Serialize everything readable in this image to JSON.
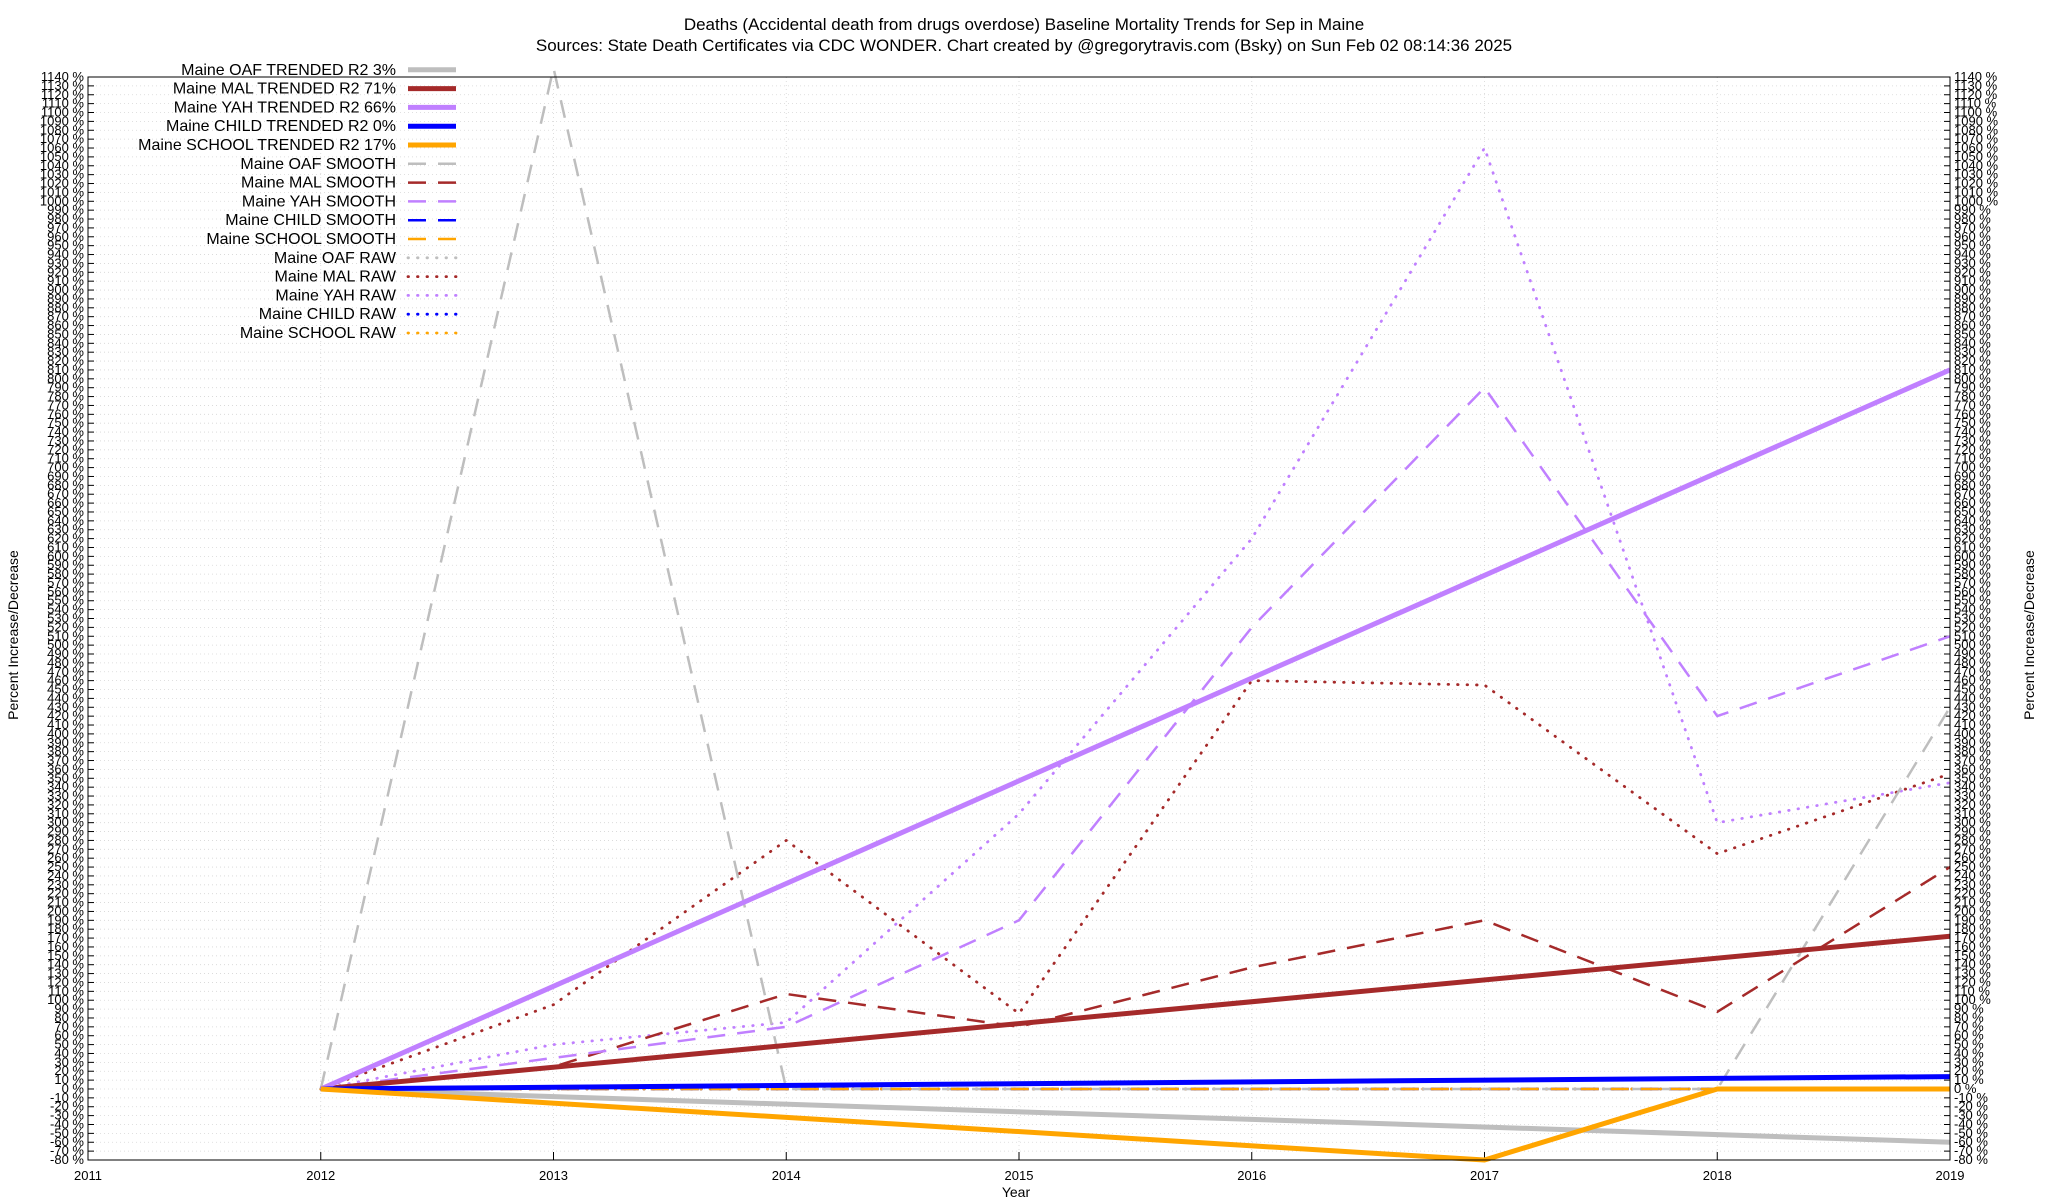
{
  "chart_data": {
    "type": "line",
    "title": "Deaths (Accidental death from drugs overdose)  Baseline Mortality Trends for Sep in Maine",
    "subtitle": "Sources: State Death Certificates via CDC WONDER.               Chart created by @gregorytravis.com (Bsky) on Sun Feb 02 08:14:36 2025",
    "xlabel": "Year",
    "ylabel": "Percent Increase/Decrease",
    "ylabel_right": "Percent Increase/Decrease",
    "xlim": [
      2011,
      2019
    ],
    "ylim": [
      -80,
      1140
    ],
    "y_tick_step": 10,
    "y_tick_suffix": " %",
    "x_ticks": [
      "2011",
      "2012",
      "2013",
      "2014",
      "2015",
      "2016",
      "2017",
      "2018",
      "2019"
    ],
    "grid": true,
    "legend_position": "top-left",
    "series": [
      {
        "name": "Maine OAF TRENDED R2   3%",
        "style": "trend",
        "color": "#bebebe",
        "x": [
          2012,
          2019
        ],
        "y": [
          0,
          -60
        ]
      },
      {
        "name": "Maine MAL TRENDED R2  71%",
        "style": "trend",
        "color": "#a52a2a",
        "x": [
          2012,
          2019
        ],
        "y": [
          0,
          172
        ]
      },
      {
        "name": "Maine YAH TRENDED R2  66%",
        "style": "trend",
        "color": "#c080ff",
        "x": [
          2012,
          2019
        ],
        "y": [
          0,
          810
        ]
      },
      {
        "name": "Maine CHILD TRENDED R2   0%",
        "style": "trend",
        "color": "#0000ff",
        "x": [
          2012,
          2019
        ],
        "y": [
          0,
          14
        ]
      },
      {
        "name": "Maine SCHOOL TRENDED R2  17%",
        "style": "trend",
        "color": "#ffa500",
        "x": [
          2012,
          2017,
          2018,
          2019
        ],
        "y": [
          0,
          -80,
          0,
          0
        ]
      },
      {
        "name": "Maine OAF SMOOTH",
        "style": "smooth",
        "color": "#bebebe",
        "x": [
          2012,
          2013,
          2014,
          2015,
          2016,
          2017,
          2018,
          2019
        ],
        "y": [
          0,
          1150,
          0,
          0,
          0,
          0,
          0,
          430
        ]
      },
      {
        "name": "Maine MAL SMOOTH",
        "style": "smooth",
        "color": "#a52a2a",
        "x": [
          2012,
          2013,
          2014,
          2015,
          2016,
          2017,
          2018,
          2019
        ],
        "y": [
          0,
          25,
          107,
          70,
          137,
          190,
          87,
          250
        ]
      },
      {
        "name": "Maine YAH SMOOTH",
        "style": "smooth",
        "color": "#c080ff",
        "x": [
          2012,
          2013,
          2014,
          2015,
          2016,
          2017,
          2018,
          2019
        ],
        "y": [
          0,
          35,
          70,
          190,
          520,
          790,
          420,
          510
        ]
      },
      {
        "name": "Maine CHILD SMOOTH",
        "style": "smooth",
        "color": "#0000ff",
        "x": [
          2012,
          2013,
          2014,
          2015,
          2016,
          2017,
          2018,
          2019
        ],
        "y": [
          0,
          0,
          0,
          0,
          0,
          0,
          0,
          0
        ]
      },
      {
        "name": "Maine SCHOOL SMOOTH",
        "style": "smooth",
        "color": "#ffa500",
        "x": [
          2012,
          2013,
          2014,
          2015,
          2016,
          2017,
          2018,
          2019
        ],
        "y": [
          0,
          0,
          0,
          0,
          0,
          0,
          0,
          0
        ]
      },
      {
        "name": "Maine OAF RAW",
        "style": "raw",
        "color": "#bebebe",
        "x": [
          2012,
          2013,
          2014,
          2015,
          2016,
          2017,
          2018,
          2019
        ],
        "y": [
          0,
          0,
          0,
          0,
          0,
          0,
          0,
          0
        ]
      },
      {
        "name": "Maine MAL RAW",
        "style": "raw",
        "color": "#a52a2a",
        "x": [
          2012,
          2013,
          2014,
          2015,
          2016,
          2017,
          2018,
          2019
        ],
        "y": [
          0,
          95,
          280,
          85,
          460,
          455,
          265,
          355
        ]
      },
      {
        "name": "Maine YAH RAW",
        "style": "raw",
        "color": "#c080ff",
        "x": [
          2012,
          2013,
          2014,
          2015,
          2016,
          2017,
          2018,
          2019
        ],
        "y": [
          0,
          50,
          75,
          310,
          620,
          1060,
          300,
          345
        ]
      },
      {
        "name": "Maine CHILD RAW",
        "style": "raw",
        "color": "#0000ff",
        "x": [
          2012,
          2013,
          2014,
          2015,
          2016,
          2017,
          2018,
          2019
        ],
        "y": [
          0,
          0,
          0,
          0,
          0,
          0,
          0,
          0
        ]
      },
      {
        "name": "Maine SCHOOL RAW",
        "style": "raw",
        "color": "#ffa500",
        "x": [
          2012,
          2013,
          2014,
          2015,
          2016,
          2017,
          2018,
          2019
        ],
        "y": [
          0,
          0,
          0,
          0,
          0,
          0,
          0,
          0
        ]
      }
    ]
  }
}
